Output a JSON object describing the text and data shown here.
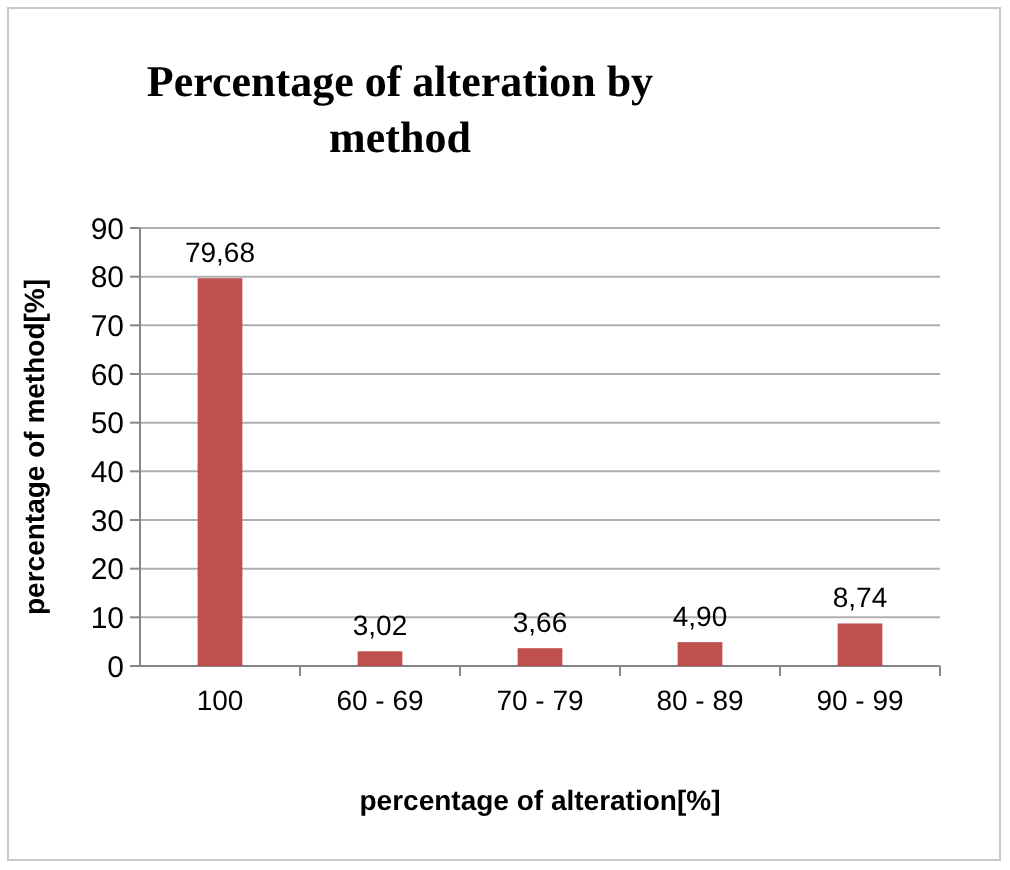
{
  "chart_data": {
    "type": "bar",
    "title": "Percentage of alteration by method",
    "xlabel": "percentage of alteration[%]",
    "ylabel": "percentage of method[%]",
    "categories": [
      "100",
      "60 - 69",
      "70 - 79",
      "80 - 89",
      "90 - 99"
    ],
    "values": [
      79.68,
      3.02,
      3.66,
      4.9,
      8.74
    ],
    "value_labels": [
      "79,68",
      "3,02",
      "3,66",
      "4,90",
      "8,74"
    ],
    "color": "#c0504d",
    "ylim": [
      0,
      90
    ],
    "yticks": [
      0,
      10,
      20,
      30,
      40,
      50,
      60,
      70,
      80,
      90
    ],
    "grid": "y"
  }
}
